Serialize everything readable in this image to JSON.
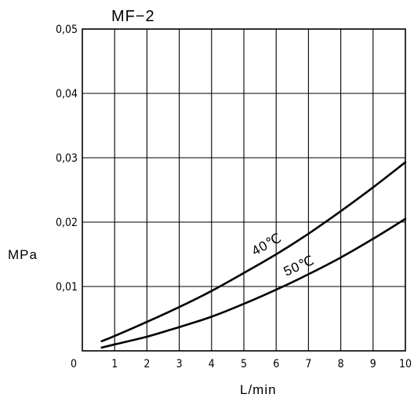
{
  "chart_data": {
    "type": "line",
    "title": "MF−2",
    "xlabel": "L/min",
    "ylabel": "MPa",
    "xlim": [
      0,
      10
    ],
    "ylim": [
      0,
      0.05
    ],
    "x_ticks": [
      "0",
      "1",
      "2",
      "3",
      "4",
      "5",
      "6",
      "7",
      "8",
      "9",
      "10"
    ],
    "y_ticks": [
      "0,01",
      "0,02",
      "0,03",
      "0,04",
      "0,05"
    ],
    "grid": true,
    "legend": "none (curves labeled inline)",
    "series": [
      {
        "name": "40℃",
        "x": [
          0.6,
          1,
          2,
          3,
          4,
          5,
          6,
          7,
          8,
          9,
          10
        ],
        "y": [
          0.0015,
          0.0023,
          0.0045,
          0.0068,
          0.0093,
          0.0121,
          0.015,
          0.0182,
          0.0217,
          0.0254,
          0.0293
        ]
      },
      {
        "name": "50℃",
        "x": [
          0.6,
          1,
          2,
          3,
          4,
          5,
          6,
          7,
          8,
          9,
          10
        ],
        "y": [
          0.0005,
          0.001,
          0.0022,
          0.0037,
          0.0053,
          0.0073,
          0.0095,
          0.0119,
          0.0145,
          0.0174,
          0.0205
        ]
      }
    ]
  }
}
